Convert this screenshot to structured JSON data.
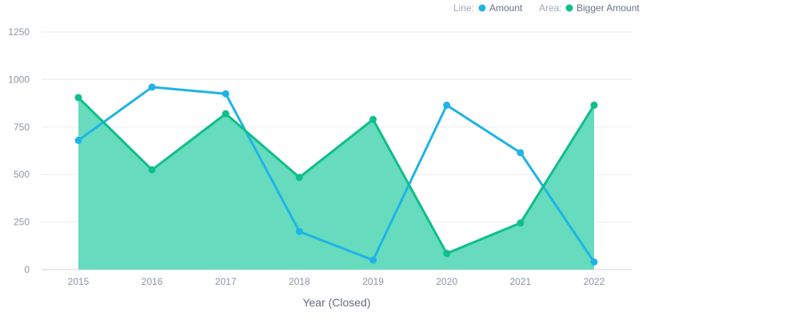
{
  "chart_data": {
    "type": "line",
    "x": [
      "2015",
      "2016",
      "2017",
      "2018",
      "2019",
      "2020",
      "2021",
      "2022"
    ],
    "xlabel": "Year (Closed)",
    "ylabel": "",
    "ylim": [
      0,
      1250
    ],
    "yticks": [
      "0",
      "250",
      "500",
      "750",
      "1000",
      "1250"
    ],
    "grid": true,
    "legend_position": "top-right",
    "legend": {
      "line_prefix": "Line:",
      "area_prefix": "Area:"
    },
    "series": [
      {
        "name": "Amount",
        "kind": "line",
        "color": "#1fb4e6",
        "values": [
          680,
          960,
          925,
          200,
          50,
          865,
          615,
          40
        ]
      },
      {
        "name": "Bigger Amount",
        "kind": "area",
        "color": "#0ebf8a",
        "fill": "#66dbbe",
        "values": [
          905,
          525,
          820,
          485,
          790,
          85,
          245,
          865
        ]
      }
    ]
  }
}
